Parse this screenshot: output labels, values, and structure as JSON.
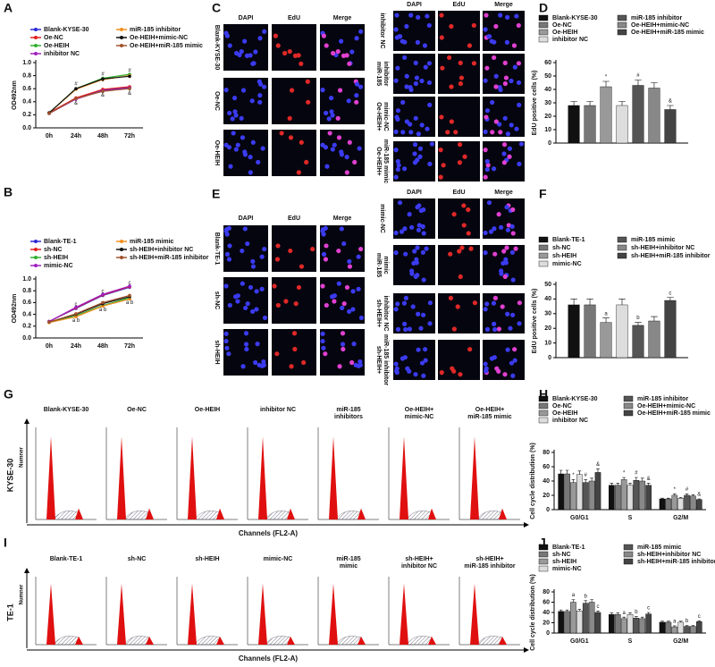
{
  "panel_letters": [
    "A",
    "B",
    "C",
    "D",
    "E",
    "F",
    "G",
    "H",
    "I",
    "J"
  ],
  "chart_data": [
    {
      "type": "line",
      "ylabel": "OD492nm",
      "categories": [
        "0h",
        "24h",
        "48h",
        "72h"
      ],
      "ylim": [
        0,
        1
      ],
      "yticks": [
        {
          "value": 0,
          "label": "0.0"
        },
        0.2,
        0.4,
        0.6,
        0.8,
        {
          "value": 1,
          "label": "1.0"
        }
      ],
      "series": [
        {
          "name": "Blank-KYSE-30",
          "color": "#2b2bd6",
          "values": [
            0.23,
            0.45,
            0.58,
            0.62
          ]
        },
        {
          "name": "Oe-NC",
          "color": "#e02020",
          "values": [
            0.23,
            0.46,
            0.59,
            0.63
          ]
        },
        {
          "name": "Oe-HEIH",
          "color": "#2fb02f",
          "values": [
            0.23,
            0.6,
            0.76,
            0.82
          ]
        },
        {
          "name": "inhibitor NC",
          "color": "#a020c0",
          "values": [
            0.22,
            0.44,
            0.57,
            0.61
          ]
        },
        {
          "name": "miR-185 inhibitor",
          "color": "#f09020",
          "values": [
            0.23,
            0.59,
            0.74,
            0.8
          ]
        },
        {
          "name": "Oe-HEIH+mimic-NC",
          "color": "#111111",
          "values": [
            0.23,
            0.6,
            0.75,
            0.79
          ]
        },
        {
          "name": "Oe-HEIH+miR-185 mimic",
          "color": "#a0522d",
          "values": [
            0.22,
            0.45,
            0.56,
            0.6
          ]
        }
      ],
      "annotations": [
        {
          "text": "#",
          "x": "24h",
          "y": 0.67
        },
        {
          "text": "&",
          "x": "24h",
          "y": 0.38
        },
        {
          "text": "#",
          "x": "48h",
          "y": 0.82
        },
        {
          "text": "*",
          "x": "48h",
          "y": 0.7
        },
        {
          "text": "&",
          "x": "48h",
          "y": 0.5
        },
        {
          "text": "#",
          "x": "72h",
          "y": 0.88
        },
        {
          "text": "&",
          "x": "72h",
          "y": 0.53
        }
      ]
    },
    {
      "type": "line",
      "ylabel": "OD492nm",
      "categories": [
        "0h",
        "24h",
        "48h",
        "72h"
      ],
      "ylim": [
        0,
        1
      ],
      "yticks": [
        {
          "value": 0,
          "label": "0.0"
        },
        0.2,
        0.4,
        0.6,
        0.8,
        {
          "value": 1,
          "label": "1.0"
        }
      ],
      "series": [
        {
          "name": "Blank-TE-1",
          "color": "#2b2bd6",
          "values": [
            0.28,
            0.5,
            0.72,
            0.86
          ]
        },
        {
          "name": "sh-NC",
          "color": "#e02020",
          "values": [
            0.28,
            0.51,
            0.73,
            0.87
          ]
        },
        {
          "name": "sh-HEIH",
          "color": "#2fb02f",
          "values": [
            0.27,
            0.38,
            0.55,
            0.68
          ]
        },
        {
          "name": "mimic-NC",
          "color": "#a020c0",
          "values": [
            0.28,
            0.52,
            0.74,
            0.88
          ]
        },
        {
          "name": "miR-185 mimic",
          "color": "#f09020",
          "values": [
            0.26,
            0.36,
            0.54,
            0.66
          ]
        },
        {
          "name": "sh-HEIH+inhibitor NC",
          "color": "#111111",
          "values": [
            0.27,
            0.4,
            0.58,
            0.7
          ]
        },
        {
          "name": "sh-HEIH+miR-185 inhibitor",
          "color": "#a0522d",
          "values": [
            0.27,
            0.41,
            0.6,
            0.72
          ]
        }
      ],
      "annotations": [
        {
          "text": "c",
          "x": "24h",
          "y": 0.57
        },
        {
          "text": "a b",
          "x": "24h",
          "y": 0.3
        },
        {
          "text": "c",
          "x": "48h",
          "y": 0.79
        },
        {
          "text": "a b",
          "x": "48h",
          "y": 0.48
        },
        {
          "text": "c",
          "x": "72h",
          "y": 0.93
        },
        {
          "text": "a b",
          "x": "72h",
          "y": 0.6
        }
      ]
    },
    {
      "type": "bar",
      "ylabel": "EdU positive cells (%)",
      "categories": [
        null
      ],
      "ylim": [
        0,
        60
      ],
      "yticks": [
        0,
        10,
        20,
        30,
        40,
        50,
        60
      ],
      "series": [
        {
          "name": "Blank-KYSE-30",
          "color": "#111111",
          "values": [
            28
          ],
          "errors": [
            3
          ]
        },
        {
          "name": "Oe-NC",
          "color": "#777777",
          "values": [
            28
          ],
          "errors": [
            3
          ]
        },
        {
          "name": "Oe-HEIH",
          "color": "#999999",
          "values": [
            42
          ],
          "errors": [
            4
          ]
        },
        {
          "name": "inhibitor NC",
          "color": "#dddddd",
          "values": [
            28
          ],
          "errors": [
            3
          ]
        },
        {
          "name": "miR-185 inhibitor",
          "color": "#555555",
          "values": [
            43
          ],
          "errors": [
            4
          ]
        },
        {
          "name": "Oe-HEIH+mimic-NC",
          "color": "#888888",
          "values": [
            41
          ],
          "errors": [
            4
          ]
        },
        {
          "name": "Oe-HEIH+miR-185 mimic",
          "color": "#444444",
          "values": [
            25
          ],
          "errors": [
            3
          ]
        }
      ],
      "annotations": [
        {
          "text": "*",
          "series": "Oe-HEIH"
        },
        {
          "text": "#",
          "series": "miR-185 inhibitor"
        },
        {
          "text": "&",
          "series": "Oe-HEIH+miR-185 mimic"
        }
      ]
    },
    {
      "type": "bar",
      "ylabel": "EdU positive cells (%)",
      "categories": [
        null
      ],
      "ylim": [
        0,
        50
      ],
      "yticks": [
        0,
        10,
        20,
        30,
        40,
        50
      ],
      "series": [
        {
          "name": "Blank-TE-1",
          "color": "#111111",
          "values": [
            36
          ],
          "errors": [
            4
          ]
        },
        {
          "name": "sh-NC",
          "color": "#777777",
          "values": [
            36
          ],
          "errors": [
            4
          ]
        },
        {
          "name": "sh-HEIH",
          "color": "#999999",
          "values": [
            24
          ],
          "errors": [
            3
          ]
        },
        {
          "name": "mimic-NC",
          "color": "#dddddd",
          "values": [
            36
          ],
          "errors": [
            4
          ]
        },
        {
          "name": "miR-185 mimic",
          "color": "#555555",
          "values": [
            22
          ],
          "errors": [
            2
          ]
        },
        {
          "name": "sh-HEIH+inhibitor NC",
          "color": "#888888",
          "values": [
            25
          ],
          "errors": [
            3
          ]
        },
        {
          "name": "sh-HEIH+miR-185 inhibitor",
          "color": "#444444",
          "values": [
            39
          ],
          "errors": [
            2
          ]
        }
      ],
      "annotations": [
        {
          "text": "a",
          "series": "sh-HEIH"
        },
        {
          "text": "b",
          "series": "miR-185 mimic"
        },
        {
          "text": "c",
          "series": "sh-HEIH+miR-185 inhibitor"
        }
      ]
    },
    {
      "type": "bar",
      "ylabel": "Cell cycle distribution (%)",
      "categories": [
        "G0/G1",
        "S",
        "G2/M"
      ],
      "ylim": [
        0,
        80
      ],
      "yticks": [
        0,
        20,
        40,
        60,
        80
      ],
      "series": [
        {
          "name": "Blank-KYSE-30",
          "color": "#111111",
          "values": [
            50,
            34,
            15
          ],
          "errors": [
            5,
            3,
            1
          ]
        },
        {
          "name": "Oe-NC",
          "color": "#777777",
          "values": [
            50,
            34,
            15
          ],
          "errors": [
            5,
            3,
            1
          ]
        },
        {
          "name": "Oe-HEIH",
          "color": "#999999",
          "values": [
            38,
            42,
            20
          ],
          "errors": [
            4,
            3,
            2
          ]
        },
        {
          "name": "inhibitor NC",
          "color": "#dddddd",
          "values": [
            49,
            34,
            16
          ],
          "errors": [
            5,
            3,
            1
          ]
        },
        {
          "name": "miR-185 inhibitor",
          "color": "#555555",
          "values": [
            38,
            41,
            20
          ],
          "errors": [
            4,
            4,
            2
          ]
        },
        {
          "name": "Oe-HEIH+mimic-NC",
          "color": "#888888",
          "values": [
            40,
            40,
            19
          ],
          "errors": [
            4,
            4,
            2
          ]
        },
        {
          "name": "Oe-HEIH+miR-185 mimic",
          "color": "#444444",
          "values": [
            52,
            34,
            14
          ],
          "errors": [
            5,
            3,
            1
          ]
        }
      ],
      "annotations": [
        {
          "text": "*",
          "series": "Oe-HEIH",
          "category": "G0/G1"
        },
        {
          "text": "#",
          "series": "miR-185 inhibitor",
          "category": "G0/G1"
        },
        {
          "text": "&",
          "series": "Oe-HEIH+miR-185 mimic",
          "category": "G0/G1"
        },
        {
          "text": "*",
          "series": "Oe-HEIH",
          "category": "S"
        },
        {
          "text": "#",
          "series": "miR-185 inhibitor",
          "category": "S"
        },
        {
          "text": "&",
          "series": "Oe-HEIH+miR-185 mimic",
          "category": "S"
        },
        {
          "text": "*",
          "series": "Oe-HEIH",
          "category": "G2/M"
        },
        {
          "text": "#",
          "series": "miR-185 inhibitor",
          "category": "G2/M"
        },
        {
          "text": "&",
          "series": "Oe-HEIH+miR-185 mimic",
          "category": "G2/M"
        }
      ]
    },
    {
      "type": "bar",
      "ylabel": "Cell cycle distribution (%)",
      "categories": [
        "G0/G1",
        "S",
        "G2/M"
      ],
      "ylim": [
        0,
        80
      ],
      "yticks": [
        0,
        20,
        40,
        60,
        80
      ],
      "series": [
        {
          "name": "Blank-TE-1",
          "color": "#111111",
          "values": [
            42,
            36,
            21
          ],
          "errors": [
            3,
            3,
            2
          ]
        },
        {
          "name": "sh-NC",
          "color": "#777777",
          "values": [
            42,
            36,
            21
          ],
          "errors": [
            3,
            3,
            2
          ]
        },
        {
          "name": "sh-HEIH",
          "color": "#999999",
          "values": [
            60,
            28,
            12
          ],
          "errors": [
            5,
            3,
            2
          ]
        },
        {
          "name": "mimic-NC",
          "color": "#dddddd",
          "values": [
            43,
            36,
            21
          ],
          "errors": [
            3,
            3,
            2
          ]
        },
        {
          "name": "miR-185 mimic",
          "color": "#555555",
          "values": [
            58,
            29,
            13
          ],
          "errors": [
            5,
            3,
            2
          ]
        },
        {
          "name": "sh-HEIH+inhibitor NC",
          "color": "#888888",
          "values": [
            60,
            28,
            13
          ],
          "errors": [
            5,
            3,
            2
          ]
        },
        {
          "name": "sh-HEIH+miR-185 inhibitor",
          "color": "#444444",
          "values": [
            40,
            37,
            22
          ],
          "errors": [
            3,
            3,
            2
          ]
        }
      ],
      "annotations": [
        {
          "text": "a",
          "series": "sh-HEIH",
          "category": "G0/G1"
        },
        {
          "text": "b",
          "series": "miR-185 mimic",
          "category": "G0/G1"
        },
        {
          "text": "c",
          "series": "sh-HEIH+miR-185 inhibitor",
          "category": "G0/G1"
        },
        {
          "text": "a",
          "series": "sh-HEIH",
          "category": "S"
        },
        {
          "text": "b",
          "series": "miR-185 mimic",
          "category": "S"
        },
        {
          "text": "c",
          "series": "sh-HEIH+miR-185 inhibitor",
          "category": "S"
        },
        {
          "text": "a",
          "series": "sh-HEIH",
          "category": "G2/M"
        },
        {
          "text": "b",
          "series": "miR-185 mimic",
          "category": "G2/M"
        },
        {
          "text": "c",
          "series": "sh-HEIH+miR-185 inhibitor",
          "category": "G2/M"
        }
      ]
    }
  ],
  "microscopy": [
    {
      "columns": [
        "DAPI",
        "EdU",
        "Merge"
      ],
      "left_rows": [
        [
          "Blank-KYSE-30"
        ],
        [
          "Oe-NC"
        ],
        [
          "Oe-HEIH"
        ]
      ],
      "right_rows": [
        [
          "inhibitor NC"
        ],
        [
          "miR-185",
          "inhibitor"
        ],
        [
          "Oe-HEIH+",
          "mimic-NC"
        ],
        [
          "Oe-HEIH+",
          "miR-185 mimic"
        ]
      ]
    },
    {
      "columns": [
        "DAPI",
        "EdU",
        "Merge"
      ],
      "left_rows": [
        [
          "Blank-TE-1"
        ],
        [
          "sh-NC"
        ],
        [
          "sh-HEIH"
        ]
      ],
      "right_rows": [
        [
          "mimic-NC"
        ],
        [
          "miR-185",
          "mimic"
        ],
        [
          "sh-HEIH+",
          "inhibitor NC"
        ],
        [
          "sh-HEIH+",
          "miR-185 inhibitor"
        ]
      ]
    }
  ],
  "flow": [
    {
      "row_label": "KYSE-30",
      "y_label": "Numner",
      "x_label": "Channels (FL2-A)",
      "plots": [
        [
          "Blank-KYSE-30"
        ],
        [
          "Oe-NC"
        ],
        [
          "Oe-HEIH"
        ],
        [
          "inhibitor NC"
        ],
        [
          "miR-185",
          "inhibitors"
        ],
        [
          "Oe-HEIH+",
          "mimic-NC"
        ],
        [
          "Oe-HEIH+",
          "miR-185 mimic"
        ]
      ]
    },
    {
      "row_label": "TE-1",
      "y_label": "Numner",
      "x_label": "Channels (FL2-A)",
      "plots": [
        [
          "Blank-TE-1"
        ],
        [
          "sh-NC"
        ],
        [
          "sh-HEIH"
        ],
        [
          "mimic-NC"
        ],
        [
          "miR-185",
          "mimic"
        ],
        [
          "sh-HEIH+",
          "inhibitor NC"
        ],
        [
          "sh-HEIH+",
          "miR-185 inhibitor"
        ]
      ]
    }
  ]
}
